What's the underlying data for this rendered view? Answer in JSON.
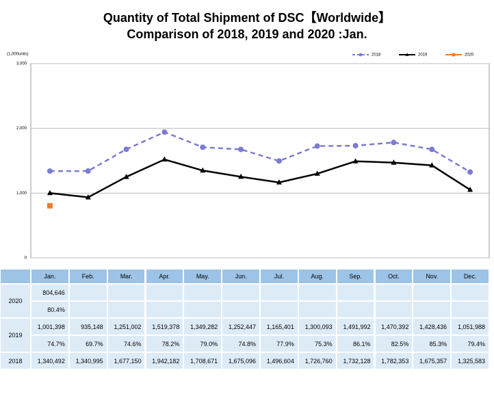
{
  "chart_data": {
    "type": "line",
    "title": "Quantity of Total Shipment of DSC【Worldwide】",
    "subtitle": "Comparison of 2018, 2019 and 2020 :Jan.",
    "y_label": "(1,000units)",
    "categories": [
      "Jan.",
      "Feb.",
      "Mar.",
      "Apr.",
      "May.",
      "Jun.",
      "Jul.",
      "Aug.",
      "Sep.",
      "Oct.",
      "Nov.",
      "Dec."
    ],
    "ylim": [
      0,
      3000
    ],
    "yticks": [
      0,
      {
        "value": 1000,
        "label": "1,000"
      },
      {
        "value": 2000,
        "label": "2,000"
      },
      {
        "value": 3000,
        "label": "3,000"
      }
    ],
    "grid": true,
    "legend": "top-right",
    "series": [
      {
        "name": "2018",
        "color": "#7b7bd0",
        "line_style": "dashed",
        "marker": "circle",
        "values": [
          1340.492,
          1340.995,
          1677.15,
          1942.182,
          1708.671,
          1675.096,
          1496.604,
          1726.76,
          1732.128,
          1782.353,
          1675.357,
          1325.583
        ],
        "value_labels": [
          "1,340,492",
          "1,340,995",
          "1,677,150",
          "1,942,182",
          "1,708,671",
          "1,675,096",
          "1,496,604",
          "1,726,760",
          "1,732,128",
          "1,782,353",
          "1,675,357",
          "1,325,583"
        ]
      },
      {
        "name": "2019",
        "color": "#000000",
        "line_style": "solid",
        "marker": "triangle",
        "values": [
          1001.398,
          935.148,
          1251.002,
          1519.378,
          1349.282,
          1252.447,
          1165.401,
          1300.093,
          1491.992,
          1470.392,
          1428.436,
          1051.988
        ],
        "value_labels": [
          "1,001,398",
          "935,148",
          "1,251,002",
          "1,519,378",
          "1,349,282",
          "1,252,447",
          "1,165,401",
          "1,300,093",
          "1,491,992",
          "1,470,392",
          "1,428,436",
          "1,051,988"
        ],
        "yoy_labels": [
          "74.7%",
          "69.7%",
          "74.6%",
          "78.2%",
          "79.0%",
          "74.8%",
          "77.9%",
          "75.3%",
          "86.1%",
          "82.5%",
          "85.3%",
          "79.4%"
        ]
      },
      {
        "name": "2020",
        "color": "#ed7d31",
        "line_style": "solid",
        "marker": "square",
        "values": [
          804.646,
          null,
          null,
          null,
          null,
          null,
          null,
          null,
          null,
          null,
          null,
          null
        ],
        "value_labels": [
          "804,646",
          null,
          null,
          null,
          null,
          null,
          null,
          null,
          null,
          null,
          null,
          null
        ],
        "yoy_labels": [
          "80.4%",
          null,
          null,
          null,
          null,
          null,
          null,
          null,
          null,
          null,
          null,
          null
        ]
      }
    ]
  }
}
